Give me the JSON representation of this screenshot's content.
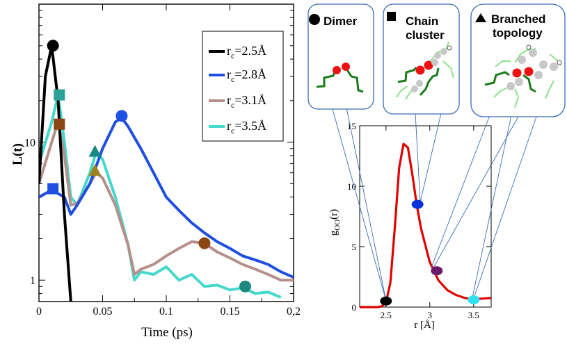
{
  "left_chart": {
    "ylabel": "L(t)",
    "xlabel": "Time (ps)",
    "legend": [
      {
        "sub": "c",
        "value": "=2.5Å",
        "color": "#000000"
      },
      {
        "sub": "c",
        "value": "=2.8Å",
        "color": "#1f4fe0"
      },
      {
        "sub": "c",
        "value": "=3.1Å",
        "color": "#b5908a"
      },
      {
        "sub": "c",
        "value": "=3.5Å",
        "color": "#45d8cc"
      }
    ],
    "xticks": [
      "0",
      "0.05",
      "0.1",
      "0.15",
      "0,2"
    ],
    "yticks": [
      "1",
      "10"
    ]
  },
  "right_chart": {
    "ylabel": "g",
    "ylabel_sub": "OO",
    "ylabel_suffix": "(r)",
    "xlabel": "r [Å]",
    "xticks": [
      "2.5",
      "3",
      "3.5"
    ],
    "yticks": [
      "0",
      "5",
      "10",
      "15"
    ]
  },
  "panels": {
    "dimer": "Dimer",
    "chain_line1": "Chain",
    "chain_line2": "cluster",
    "branched_line1": "Branched",
    "branched_line2": "topology"
  },
  "chart_data": [
    {
      "type": "line",
      "xlabel": "Time (ps)",
      "ylabel": "L(t)",
      "yscale": "log",
      "xlim": [
        0,
        0.2
      ],
      "ylim": [
        0.7,
        100
      ],
      "legend_position": "top-right",
      "series": [
        {
          "name": "rc=2.5Å",
          "color": "#000000",
          "x": [
            0.0,
            0.005,
            0.01,
            0.015,
            0.02,
            0.025
          ],
          "y": [
            5,
            30,
            50,
            20,
            3,
            0.7
          ]
        },
        {
          "name": "rc=2.8Å",
          "color": "#1f4fe0",
          "x": [
            0.0,
            0.01,
            0.02,
            0.025,
            0.03,
            0.04,
            0.05,
            0.06,
            0.065,
            0.07,
            0.08,
            0.09,
            0.1,
            0.11,
            0.12,
            0.13,
            0.14,
            0.15,
            0.16,
            0.17,
            0.18,
            0.19,
            0.2
          ],
          "y": [
            4,
            4.5,
            4,
            3,
            3.5,
            5,
            9,
            14,
            15,
            13,
            9,
            6,
            4,
            3.2,
            2.6,
            2.2,
            1.9,
            1.7,
            1.5,
            1.4,
            1.3,
            1.15,
            1.05
          ]
        },
        {
          "name": "rc=3.1Å",
          "color": "#b5908a",
          "x": [
            0.0,
            0.01,
            0.015,
            0.02,
            0.025,
            0.03,
            0.04,
            0.045,
            0.05,
            0.06,
            0.07,
            0.075,
            0.08,
            0.09,
            0.1,
            0.11,
            0.12,
            0.13,
            0.14,
            0.15,
            0.16,
            0.17,
            0.18,
            0.19,
            0.2
          ],
          "y": [
            5,
            10,
            14,
            8,
            3.5,
            3.6,
            5,
            6,
            5.5,
            3.5,
            1.8,
            1.1,
            1.2,
            1.3,
            1.5,
            1.7,
            1.9,
            1.85,
            1.6,
            1.45,
            1.3,
            1.2,
            1.1,
            1.0,
            1.0
          ]
        },
        {
          "name": "rc=3.5Å",
          "color": "#45d8cc",
          "x": [
            0.0,
            0.01,
            0.015,
            0.02,
            0.025,
            0.03,
            0.04,
            0.045,
            0.05,
            0.06,
            0.07,
            0.075,
            0.08,
            0.09,
            0.1,
            0.11,
            0.12,
            0.13,
            0.14,
            0.15,
            0.16,
            0.17,
            0.18,
            0.19
          ],
          "y": [
            7,
            14,
            22,
            10,
            4,
            3.5,
            6,
            8.5,
            7.5,
            4,
            1.8,
            1.0,
            1.15,
            1.1,
            1.25,
            1.0,
            1.1,
            0.9,
            0.92,
            0.85,
            0.88,
            0.8,
            0.82,
            0.75
          ]
        }
      ],
      "markers": [
        {
          "series": "rc=2.5Å",
          "shape": "circle",
          "x": 0.011,
          "y": 50,
          "color": "#000000"
        },
        {
          "series": "rc=2.8Å",
          "shape": "square",
          "x": 0.011,
          "y": 4.6,
          "color": "#1f4fe0"
        },
        {
          "series": "rc=2.8Å",
          "shape": "circle",
          "x": 0.065,
          "y": 15.5,
          "color": "#1f4fe0"
        },
        {
          "series": "rc=3.1Å",
          "shape": "square",
          "x": 0.016,
          "y": 13.5,
          "color": "#8b4513"
        },
        {
          "series": "rc=3.1Å",
          "shape": "triangle",
          "x": 0.044,
          "y": 6.2,
          "color": "#a08020"
        },
        {
          "series": "rc=3.1Å",
          "shape": "circle",
          "x": 0.13,
          "y": 1.85,
          "color": "#8b4513"
        },
        {
          "series": "rc=3.5Å",
          "shape": "square",
          "x": 0.016,
          "y": 22,
          "color": "#2aa198"
        },
        {
          "series": "rc=3.5Å",
          "shape": "triangle",
          "x": 0.044,
          "y": 8.5,
          "color": "#1a8a80"
        },
        {
          "series": "rc=3.5Å",
          "shape": "circle",
          "x": 0.162,
          "y": 0.9,
          "color": "#1a8a80"
        }
      ]
    },
    {
      "type": "line",
      "xlabel": "r [Å]",
      "ylabel": "gOO(r)",
      "xlim": [
        2.2,
        3.7
      ],
      "ylim": [
        0,
        15
      ],
      "series": [
        {
          "name": "gOO(r)",
          "color": "#e00000",
          "x": [
            2.2,
            2.4,
            2.45,
            2.5,
            2.55,
            2.6,
            2.65,
            2.7,
            2.75,
            2.8,
            2.85,
            2.9,
            3.0,
            3.1,
            3.2,
            3.3,
            3.4,
            3.5,
            3.6,
            3.7
          ],
          "y": [
            0,
            0,
            0.05,
            0.4,
            2.0,
            6.5,
            11.5,
            13.5,
            13.2,
            11.0,
            8.5,
            6.5,
            3.7,
            2.2,
            1.4,
            1.0,
            0.75,
            0.65,
            0.7,
            0.75
          ]
        }
      ],
      "markers": [
        {
          "shape": "circle",
          "x": 2.5,
          "y": 0.5,
          "color": "#000000"
        },
        {
          "shape": "circle",
          "x": 2.86,
          "y": 8.5,
          "color": "#0b32d9"
        },
        {
          "shape": "circle",
          "x": 3.08,
          "y": 3.0,
          "color": "#6a1a6a"
        },
        {
          "shape": "circle",
          "x": 3.5,
          "y": 0.6,
          "color": "#2fe0f0"
        }
      ]
    }
  ]
}
